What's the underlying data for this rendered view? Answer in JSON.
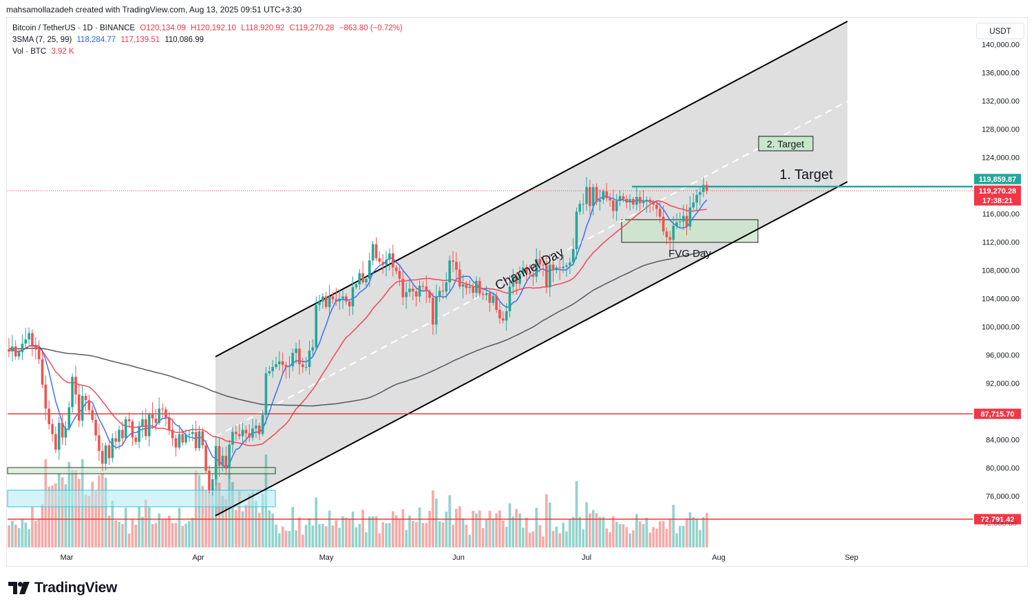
{
  "header": {
    "credit": "mahsamollazadeh created with TradingView.com, Aug 13, 2025 09:51 UTC+3:30"
  },
  "legend": {
    "symbol": "Bitcoin / TetherUS · 1D · BINANCE",
    "open": "O120,134.09",
    "high": "H120,192.10",
    "low": "L118,920.92",
    "close": "C119,270.28",
    "change": "−863.80 (−0.72%)",
    "sma_label": "3SMA (7, 25, 99)",
    "sma1": "118,284.77",
    "sma2": "117,139.51",
    "sma3": "110,086.99",
    "vol_label": "Vol · BTC",
    "vol_value": "3.92 K"
  },
  "currency_button": "USDT",
  "brand": {
    "name": "TradingView",
    "icon": "tradingview-logo-icon"
  },
  "colors": {
    "up": "#26a69a",
    "down": "#ef5350",
    "sma7": "#2962ff",
    "sma25": "#f23645",
    "sma99": "#434651",
    "channel": "#d9d9d9",
    "hline": "#e53935",
    "target": "#26a69a"
  },
  "chart_data": {
    "type": "candlestick",
    "symbol": "BTC/USDT",
    "interval": "1D",
    "ylim": [
      70000,
      144000
    ],
    "y_ticks": [
      "140,000.00",
      "136,000.00",
      "132,000.00",
      "128,000.00",
      "124,000.00",
      "116,000.00",
      "112,000.00",
      "108,000.00",
      "104,000.00",
      "100,000.00",
      "96,000.00",
      "92,000.00",
      "84,000.00",
      "80,000.00",
      "76,000.00"
    ],
    "x_ticks": [
      "Mar",
      "Apr",
      "May",
      "Jun",
      "Jul",
      "Aug",
      "Sep"
    ],
    "price_labels": [
      {
        "value": "119,859.87",
        "color": "#26a69a"
      },
      {
        "value": "119,270.28",
        "color": "#f23645"
      },
      {
        "value": "17:38:21",
        "color": "#f23645"
      },
      {
        "value": "87,715.70",
        "color": "#f23645"
      },
      {
        "value": "72,791.42",
        "color": "#f23645"
      },
      {
        "value": "72,000.00",
        "color": "#131722"
      }
    ],
    "horizontal_lines": [
      {
        "price": 119859.87,
        "color": "#26a69a",
        "label": "1. Target"
      },
      {
        "price": 87715.7,
        "color": "#e53935"
      },
      {
        "price": 72791.42,
        "color": "#e53935"
      }
    ],
    "annotations": [
      "Channel Day",
      "FVG Day",
      "2. Target",
      "1. Target"
    ],
    "closes": [
      96500,
      97200,
      95800,
      96400,
      97600,
      98200,
      99100,
      97400,
      96800,
      95400,
      91800,
      88400,
      86200,
      84800,
      82600,
      86400,
      84300,
      85600,
      88600,
      92900,
      90400,
      86700,
      90200,
      89600,
      88200,
      86800,
      84600,
      82400,
      80600,
      83200,
      81400,
      84200,
      83700,
      85400,
      84200,
      86900,
      86600,
      84300,
      83700,
      85900,
      86900,
      84500,
      87600,
      87000,
      86400,
      88400,
      88300,
      87100,
      85400,
      84200,
      82900,
      84800,
      83600,
      84700,
      84800,
      85100,
      82800,
      85200,
      83200,
      79600,
      76800,
      78400,
      83100,
      80300,
      81700,
      79900,
      83300,
      85100,
      84800,
      84500,
      85400,
      84900,
      84300,
      85600,
      86000,
      84800,
      87500,
      93400,
      93700,
      94300,
      94700,
      95100,
      94600,
      94300,
      94400,
      96300,
      96900,
      94700,
      94300,
      94300,
      96600,
      97100,
      103100,
      103600,
      104300,
      102800,
      104300,
      103900,
      103600,
      104000,
      104300,
      103600,
      102900,
      105600,
      106000,
      107600,
      106300,
      106800,
      109400,
      111700,
      109700,
      109200,
      108800,
      109500,
      110400,
      108400,
      107900,
      106800,
      104200,
      104900,
      105400,
      105000,
      104300,
      105800,
      105700,
      105000,
      104100,
      100300,
      104300,
      105100,
      105000,
      106300,
      109400,
      109200,
      108100,
      105700,
      106000,
      105500,
      105700,
      104800,
      106500,
      104700,
      104500,
      104800,
      103400,
      104400,
      102400,
      101200,
      100900,
      102200,
      105700,
      107200,
      106100,
      107500,
      108400,
      107600,
      107400,
      107100,
      109600,
      108800,
      108700,
      105600,
      108800,
      108000,
      108400,
      108300,
      108500,
      108700,
      109100,
      111000,
      116300,
      117400,
      117400,
      119800,
      117100,
      119800,
      117700,
      118000,
      119200,
      118200,
      117900,
      116400,
      117800,
      118500,
      118100,
      117600,
      118100,
      117300,
      118400,
      117500,
      117800,
      118000,
      117600,
      117300,
      116700,
      115600,
      113500,
      112700,
      112300,
      114300,
      114800,
      114900,
      115700,
      114200,
      116900,
      117600,
      118700,
      119100,
      120100,
      119270
    ],
    "sma7_last": 118284.77,
    "sma25_last": 117139.51,
    "sma99_last": 110086.99
  }
}
